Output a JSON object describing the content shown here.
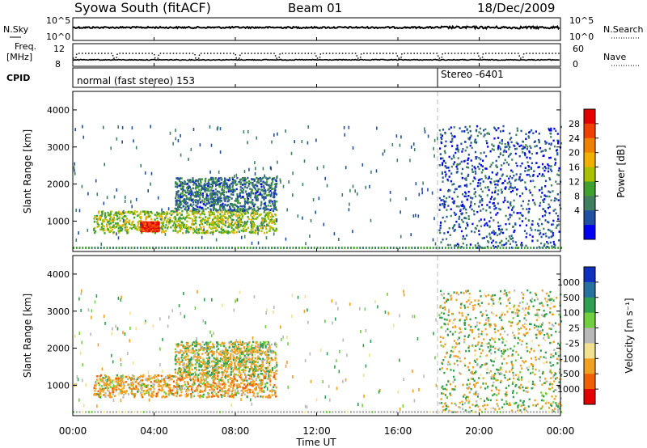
{
  "header": {
    "title": "Syowa South (fitACF)",
    "beam": "Beam 01",
    "date": "18/Dec/2009"
  },
  "noise_panel": {
    "left_label": "N.Sky",
    "left_ticks": [
      "10^5",
      "10^0"
    ],
    "right_label": "N.Search",
    "right_ticks": [
      "10^5",
      "10^0"
    ]
  },
  "freq_panel": {
    "left_label_top": "Freq.",
    "left_label_bottom": "[MHz]",
    "left_ticks": [
      "12",
      "8"
    ],
    "right_label": "Nave",
    "right_ticks": [
      "60",
      "0"
    ]
  },
  "cpid": {
    "label": "CPID",
    "modes": [
      {
        "text": "normal (fast stereo) 153"
      },
      {
        "text": "Stereo -6401"
      }
    ]
  },
  "power_panel": {
    "ylabel": "Slant Range [km]",
    "colorbar_label": "Power [dB]",
    "colorbar_ticks": [
      "28",
      "24",
      "20",
      "16",
      "12",
      "8",
      "4"
    ],
    "colors": [
      "#e00000",
      "#f04000",
      "#f08000",
      "#f0b000",
      "#a8c000",
      "#40a030",
      "#408060",
      "#2050a0",
      "#0000f0"
    ]
  },
  "velocity_panel": {
    "ylabel": "Slant Range [km]",
    "colorbar_label": "Velocity [m s⁻¹]",
    "colorbar_ticks": [
      "1000",
      "500",
      "100",
      "25",
      "-25",
      "-100",
      "-500",
      "-1000"
    ],
    "colors": [
      "#1030c0",
      "#2870a0",
      "#30a050",
      "#70d040",
      "#b8b8b8",
      "#f0e090",
      "#f0a020",
      "#f06000",
      "#e00000"
    ]
  },
  "x_axis": {
    "label": "Time UT",
    "ticks": [
      "00:00",
      "04:00",
      "08:00",
      "12:00",
      "16:00",
      "20:00",
      "00:00"
    ]
  },
  "y_axis_ticks": [
    "4000",
    "3000",
    "2000",
    "1000"
  ],
  "chart_data": [
    {
      "type": "heatmap",
      "title": "Syowa South (fitACF) Beam 01 18/Dec/2009",
      "quantity": "Power",
      "xlabel": "Time UT",
      "ylabel": "Slant Range [km]",
      "xlim": [
        0,
        24
      ],
      "ylim": [
        180,
        4500
      ],
      "colorbar_label": "Power [dB]",
      "colorbar_range": [
        0,
        30
      ],
      "mode_change_hour": 18.0,
      "scatter_regions": [
        {
          "t_start": 1.0,
          "t_end": 10.0,
          "r_min": 700,
          "r_max": 1300,
          "typical": 14
        },
        {
          "t_start": 3.3,
          "t_end": 4.2,
          "r_min": 750,
          "r_max": 1000,
          "typical": 28
        },
        {
          "t_start": 5.0,
          "t_end": 10.0,
          "r_min": 1300,
          "r_max": 2200,
          "typical": 6
        },
        {
          "t_start": 18.0,
          "t_end": 24.0,
          "r_min": 300,
          "r_max": 3600,
          "typical": 4
        }
      ]
    },
    {
      "type": "heatmap",
      "quantity": "Velocity",
      "xlabel": "Time UT",
      "ylabel": "Slant Range [km]",
      "xlim": [
        0,
        24
      ],
      "ylim": [
        180,
        4500
      ],
      "colorbar_label": "Velocity [m s⁻¹]",
      "colorbar_range": [
        -1000,
        1000
      ],
      "scatter_regions": [
        {
          "t_start": 1.0,
          "t_end": 10.0,
          "r_min": 700,
          "r_max": 1300,
          "typical": -150
        },
        {
          "t_start": 5.0,
          "t_end": 10.0,
          "r_min": 1300,
          "r_max": 2200,
          "typical": -50
        },
        {
          "t_start": 18.0,
          "t_end": 24.0,
          "r_min": 300,
          "r_max": 3600,
          "typical": 0
        }
      ]
    }
  ]
}
